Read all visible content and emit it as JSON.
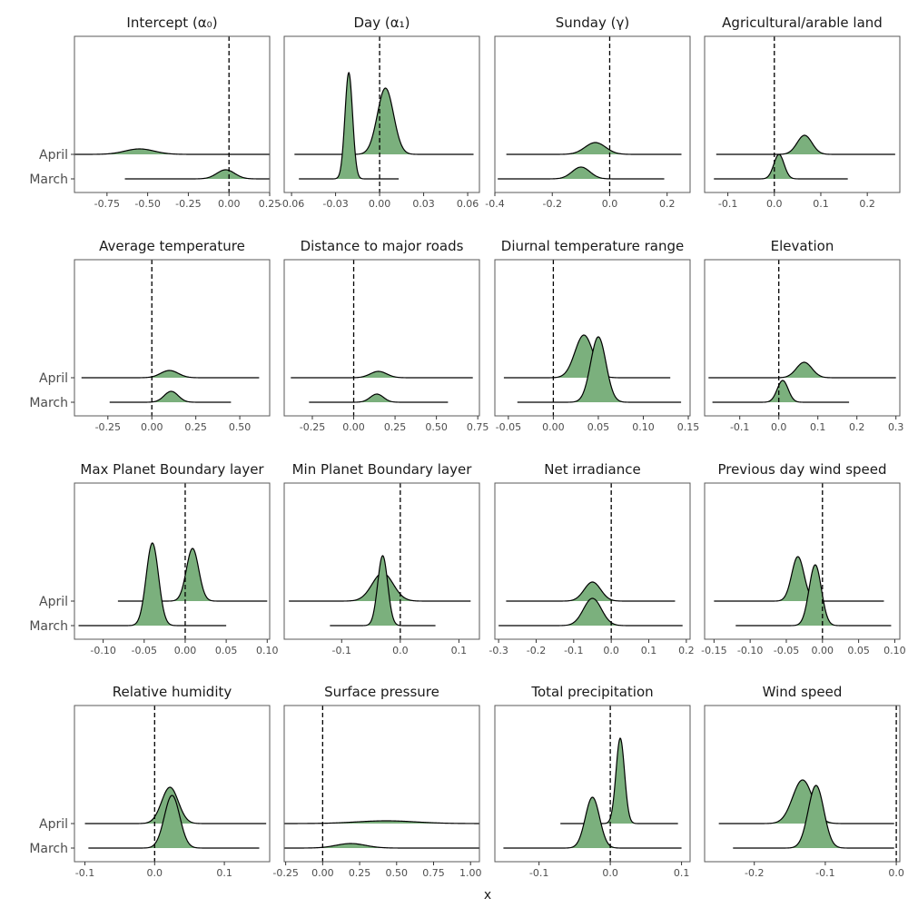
{
  "colors": {
    "fill": "#7bb07d",
    "stroke": "#000000",
    "panel_border": "#5a5a5a",
    "tick": "#4d4d4d"
  },
  "chart_data": {
    "type": "ridgeline",
    "xlabel": "x",
    "rows": [
      "April",
      "March"
    ],
    "panels": [
      {
        "title": "Intercept (α₀)",
        "xlim": [
          -0.95,
          0.25
        ],
        "ticks": [
          -0.75,
          -0.5,
          -0.25,
          0,
          0.25
        ],
        "tick_labels": [
          "-0.75",
          "-0.50",
          "-0.25",
          "0.00",
          "0.25"
        ],
        "zero": 0,
        "series": [
          {
            "name": "April",
            "mean": -0.55,
            "sd": 0.09,
            "h": 0.06,
            "range": [
              -0.95,
              0.25
            ]
          },
          {
            "name": "March",
            "mean": -0.02,
            "sd": 0.055,
            "h": 0.1,
            "range": [
              -0.64,
              0.25
            ]
          }
        ]
      },
      {
        "title": "Day (α₁)",
        "xlim": [
          -0.065,
          0.068
        ],
        "ticks": [
          -0.06,
          -0.03,
          0,
          0.03,
          0.06
        ],
        "tick_labels": [
          "-0.06",
          "-0.03",
          "0.00",
          "0.03",
          "0.06"
        ],
        "zero": 0,
        "series": [
          {
            "name": "April",
            "mean": 0.004,
            "sd": 0.0055,
            "h": 0.73,
            "range": [
              -0.058,
              0.064
            ]
          },
          {
            "name": "March",
            "mean": -0.021,
            "sd": 0.0026,
            "h": 1.17,
            "range": [
              -0.055,
              0.013
            ]
          }
        ]
      },
      {
        "title": "Sunday (γ)",
        "xlim": [
          -0.4,
          0.28
        ],
        "ticks": [
          -0.4,
          -0.2,
          0,
          0.2
        ],
        "tick_labels": [
          "-0.4",
          "-0.2",
          "0.0",
          "0.2"
        ],
        "zero": 0,
        "series": [
          {
            "name": "April",
            "mean": -0.05,
            "sd": 0.036,
            "h": 0.13,
            "range": [
              -0.36,
              0.25
            ]
          },
          {
            "name": "March",
            "mean": -0.1,
            "sd": 0.031,
            "h": 0.13,
            "range": [
              -0.39,
              0.19
            ]
          }
        ]
      },
      {
        "title": "Agricultural/arable land",
        "xlim": [
          -0.15,
          0.27
        ],
        "ticks": [
          -0.1,
          0,
          0.1,
          0.2
        ],
        "tick_labels": [
          "-0.1",
          "0.0",
          "0.1",
          "0.2"
        ],
        "zero": 0,
        "series": [
          {
            "name": "April",
            "mean": 0.065,
            "sd": 0.016,
            "h": 0.21,
            "range": [
              -0.125,
              0.26
            ]
          },
          {
            "name": "March",
            "mean": 0.01,
            "sd": 0.011,
            "h": 0.27,
            "range": [
              -0.13,
              0.158
            ]
          }
        ]
      },
      {
        "title": "Average temperature",
        "xlim": [
          -0.44,
          0.67
        ],
        "ticks": [
          -0.25,
          0,
          0.25,
          0.5
        ],
        "tick_labels": [
          "-0.25",
          "0.00",
          "0.25",
          "0.50"
        ],
        "zero": 0,
        "series": [
          {
            "name": "April",
            "mean": 0.1,
            "sd": 0.05,
            "h": 0.08,
            "range": [
              -0.4,
              0.61
            ]
          },
          {
            "name": "March",
            "mean": 0.11,
            "sd": 0.04,
            "h": 0.12,
            "range": [
              -0.24,
              0.45
            ]
          }
        ]
      },
      {
        "title": "Distance to major roads",
        "xlim": [
          -0.42,
          0.76
        ],
        "ticks": [
          -0.25,
          0,
          0.25,
          0.5,
          0.75
        ],
        "tick_labels": [
          "-0.25",
          "0.00",
          "0.25",
          "0.50",
          "0.75"
        ],
        "zero": 0,
        "series": [
          {
            "name": "April",
            "mean": 0.15,
            "sd": 0.05,
            "h": 0.07,
            "range": [
              -0.38,
              0.72
            ]
          },
          {
            "name": "March",
            "mean": 0.14,
            "sd": 0.04,
            "h": 0.09,
            "range": [
              -0.27,
              0.57
            ]
          }
        ]
      },
      {
        "title": "Diurnal temperature range",
        "xlim": [
          -0.065,
          0.152
        ],
        "ticks": [
          -0.05,
          0,
          0.05,
          0.1,
          0.15
        ],
        "tick_labels": [
          "-0.05",
          "0.00",
          "0.05",
          "0.10",
          "0.15"
        ],
        "zero": 0,
        "series": [
          {
            "name": "April",
            "mean": 0.034,
            "sd": 0.01,
            "h": 0.47,
            "range": [
              -0.055,
              0.13
            ]
          },
          {
            "name": "March",
            "mean": 0.05,
            "sd": 0.0085,
            "h": 0.72,
            "range": [
              -0.04,
              0.142
            ]
          }
        ]
      },
      {
        "title": "Elevation",
        "xlim": [
          -0.19,
          0.31
        ],
        "ticks": [
          -0.1,
          0,
          0.1,
          0.2,
          0.3
        ],
        "tick_labels": [
          "-0.1",
          "0.0",
          "0.1",
          "0.2",
          "0.3"
        ],
        "zero": 0,
        "series": [
          {
            "name": "April",
            "mean": 0.065,
            "sd": 0.02,
            "h": 0.17,
            "range": [
              -0.18,
              0.3
            ]
          },
          {
            "name": "March",
            "mean": 0.01,
            "sd": 0.014,
            "h": 0.24,
            "range": [
              -0.17,
              0.18
            ]
          }
        ]
      },
      {
        "title": "Max Planet Boundary layer",
        "xlim": [
          -0.135,
          0.103
        ],
        "ticks": [
          -0.1,
          -0.05,
          0,
          0.05,
          0.1
        ],
        "tick_labels": [
          "-0.10",
          "-0.05",
          "0.00",
          "0.05",
          "0.10"
        ],
        "zero": 0,
        "series": [
          {
            "name": "April",
            "mean": 0.009,
            "sd": 0.0075,
            "h": 0.58,
            "range": [
              -0.082,
              0.1
            ]
          },
          {
            "name": "March",
            "mean": -0.04,
            "sd": 0.0075,
            "h": 0.91,
            "range": [
              -0.13,
              0.05
            ]
          }
        ]
      },
      {
        "title": "Min Planet Boundary layer",
        "xlim": [
          -0.198,
          0.135
        ],
        "ticks": [
          -0.1,
          0,
          0.1
        ],
        "tick_labels": [
          "-0.1",
          "0.0",
          "0.1"
        ],
        "zero": 0,
        "series": [
          {
            "name": "April",
            "mean": -0.03,
            "sd": 0.018,
            "h": 0.31,
            "range": [
              -0.19,
              0.12
            ]
          },
          {
            "name": "March",
            "mean": -0.03,
            "sd": 0.0085,
            "h": 0.77,
            "range": [
              -0.12,
              0.06
            ]
          }
        ]
      },
      {
        "title": "Net irradiance",
        "xlim": [
          -0.31,
          0.21
        ],
        "ticks": [
          -0.3,
          -0.2,
          -0.1,
          0,
          0.1,
          0.2
        ],
        "tick_labels": [
          "-0.3",
          "-0.2",
          "-0.1",
          "0.0",
          "0.1",
          "0.2"
        ],
        "zero": 0,
        "series": [
          {
            "name": "April",
            "mean": -0.05,
            "sd": 0.022,
            "h": 0.21,
            "range": [
              -0.28,
              0.17
            ]
          },
          {
            "name": "March",
            "mean": -0.05,
            "sd": 0.024,
            "h": 0.3,
            "range": [
              -0.3,
              0.19
            ]
          }
        ]
      },
      {
        "title": "Previous day wind speed",
        "xlim": [
          -0.163,
          0.107
        ],
        "ticks": [
          -0.15,
          -0.1,
          -0.05,
          0,
          0.05,
          0.1
        ],
        "tick_labels": [
          "-0.15",
          "-0.10",
          "-0.05",
          "0.00",
          "0.05",
          "0.10"
        ],
        "zero": 0,
        "series": [
          {
            "name": "April",
            "mean": -0.034,
            "sd": 0.0085,
            "h": 0.49,
            "range": [
              -0.15,
              0.085
            ]
          },
          {
            "name": "March",
            "mean": -0.01,
            "sd": 0.0085,
            "h": 0.67,
            "range": [
              -0.12,
              0.095
            ]
          }
        ]
      },
      {
        "title": "Relative humidity",
        "xlim": [
          -0.115,
          0.165
        ],
        "ticks": [
          -0.1,
          0,
          0.1
        ],
        "tick_labels": [
          "-0.1",
          "0.0",
          "0.1"
        ],
        "zero": 0,
        "series": [
          {
            "name": "April",
            "mean": 0.022,
            "sd": 0.012,
            "h": 0.4,
            "range": [
              -0.1,
              0.16
            ]
          },
          {
            "name": "March",
            "mean": 0.025,
            "sd": 0.011,
            "h": 0.58,
            "range": [
              -0.095,
              0.15
            ]
          }
        ]
      },
      {
        "title": "Surface pressure",
        "xlim": [
          -0.26,
          1.06
        ],
        "ticks": [
          -0.25,
          0,
          0.25,
          0.5,
          0.75,
          1
        ],
        "tick_labels": [
          "-0.25",
          "0.00",
          "0.25",
          "0.50",
          "0.75",
          "1.00"
        ],
        "zero": 0,
        "series": [
          {
            "name": "April",
            "mean": 0.43,
            "sd": 0.2,
            "h": 0.03,
            "range": [
              -0.26,
              1.06
            ]
          },
          {
            "name": "March",
            "mean": 0.19,
            "sd": 0.1,
            "h": 0.05,
            "range": [
              -0.26,
              1.06
            ]
          }
        ]
      },
      {
        "title": "Total precipitation",
        "xlim": [
          -0.162,
          0.112
        ],
        "ticks": [
          -0.1,
          0,
          0.1
        ],
        "tick_labels": [
          "-0.1",
          "0.0",
          "0.1"
        ],
        "zero": 0,
        "series": [
          {
            "name": "April",
            "mean": 0.014,
            "sd": 0.006,
            "h": 0.94,
            "range": [
              -0.07,
              0.095
            ]
          },
          {
            "name": "March",
            "mean": -0.025,
            "sd": 0.01,
            "h": 0.56,
            "range": [
              -0.15,
              0.1
            ]
          }
        ]
      },
      {
        "title": "Wind speed",
        "xlim": [
          -0.27,
          0.005
        ],
        "ticks": [
          -0.2,
          -0.1,
          0
        ],
        "tick_labels": [
          "-0.2",
          "-0.1",
          "0.0"
        ],
        "zero": 0,
        "series": [
          {
            "name": "April",
            "mean": -0.132,
            "sd": 0.014,
            "h": 0.48,
            "range": [
              -0.25,
              -0.003
            ]
          },
          {
            "name": "March",
            "mean": -0.113,
            "sd": 0.011,
            "h": 0.69,
            "range": [
              -0.23,
              -0.003
            ]
          }
        ]
      }
    ]
  }
}
